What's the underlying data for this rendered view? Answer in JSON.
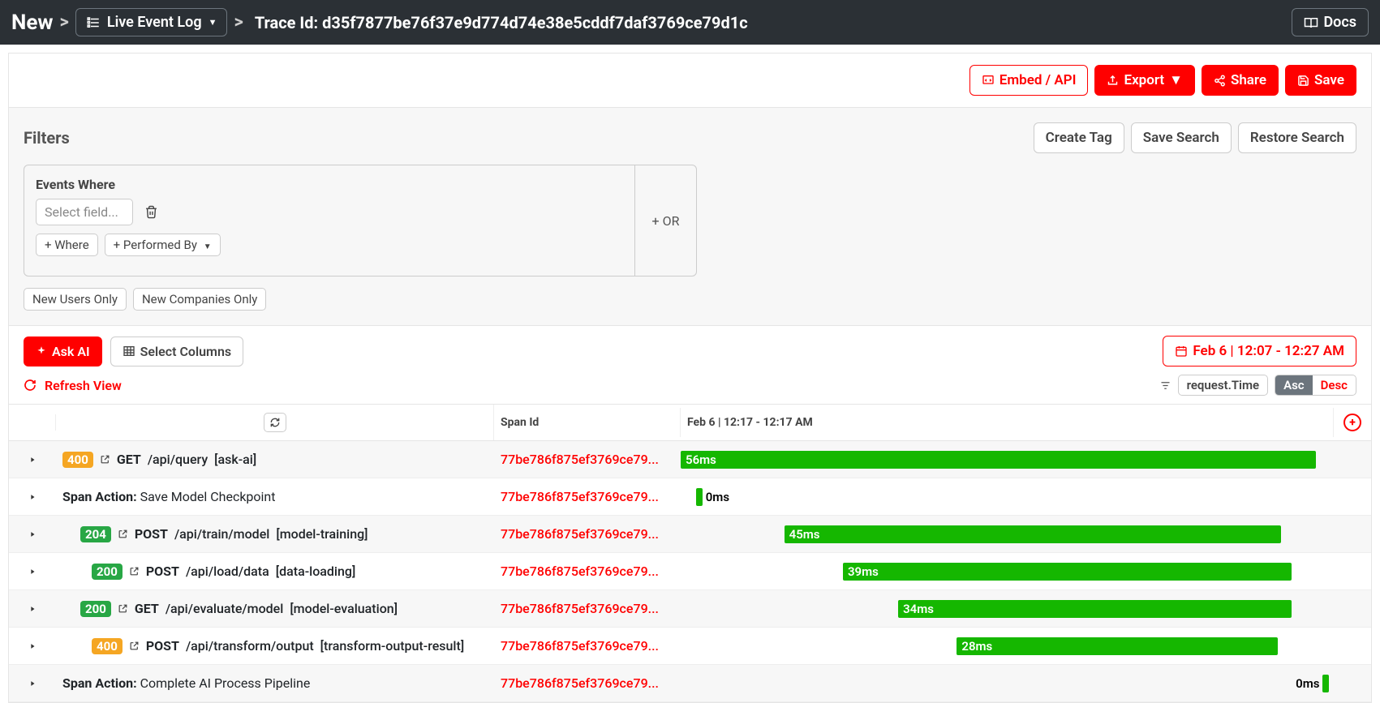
{
  "colors": {
    "topbar_bg": "#2b3035",
    "red": "#ff0000",
    "green": "#15b700",
    "orange": "#f5a623",
    "green_badge": "#28a745",
    "gray_panel": "#f7f7f7"
  },
  "topbar": {
    "new_label": "New",
    "dropdown_label": "Live Event Log",
    "trace_label": "Trace Id: d35f7877be76f37e9d774d74e38e5cddf7daf3769ce79d1c",
    "docs_label": "Docs"
  },
  "actionbar": {
    "embed": "Embed / API",
    "export": "Export",
    "share": "Share",
    "save": "Save"
  },
  "filters": {
    "title": "Filters",
    "create_tag": "Create Tag",
    "save_search": "Save Search",
    "restore_search": "Restore Search",
    "events_where": "Events Where",
    "select_field_placeholder": "Select field...",
    "where": "+ Where",
    "performed_by": "+ Performed By",
    "or": "+ OR",
    "new_users": "New Users Only",
    "new_companies": "New Companies Only"
  },
  "toolbar": {
    "ask_ai": "Ask AI",
    "select_columns": "Select Columns",
    "date_range": "Feb 6 | 12:07 - 12:27 AM",
    "refresh_view": "Refresh View",
    "sort_field": "request.Time",
    "asc": "Asc",
    "desc": "Desc"
  },
  "table": {
    "headers": {
      "span_id": "Span Id",
      "time": "Feb 6 | 12:17 - 12:17 AM"
    },
    "span_id_display": "77be786f875ef3769ce79...",
    "timeline": {
      "total_pct": 100
    },
    "rows": [
      {
        "type": "req",
        "indent": 0,
        "status": 400,
        "status_bg": "#f5a623",
        "method": "GET",
        "path": "/api/query",
        "tag": "[ask-ai]",
        "duration": "56ms",
        "bar_left_pct": 0,
        "bar_width_pct": 92,
        "alt": true
      },
      {
        "type": "action",
        "indent": 0,
        "action_name": "Save Model Checkpoint",
        "duration": "0ms",
        "tick_left_pct": 2.2,
        "text_after": true,
        "alt": false
      },
      {
        "type": "req",
        "indent": 1,
        "status": 204,
        "status_bg": "#28a745",
        "method": "POST",
        "path": "/api/train/model",
        "tag": "[model-training]",
        "duration": "45ms",
        "bar_left_pct": 15,
        "bar_width_pct": 72,
        "alt": true
      },
      {
        "type": "req",
        "indent": 2,
        "status": 200,
        "status_bg": "#28a745",
        "method": "POST",
        "path": "/api/load/data",
        "tag": "[data-loading]",
        "duration": "39ms",
        "bar_left_pct": 23.5,
        "bar_width_pct": 65,
        "alt": false
      },
      {
        "type": "req",
        "indent": 1,
        "status": 200,
        "status_bg": "#28a745",
        "method": "GET",
        "path": "/api/evaluate/model",
        "tag": "[model-evaluation]",
        "duration": "34ms",
        "bar_left_pct": 31.5,
        "bar_width_pct": 57,
        "alt": true
      },
      {
        "type": "req",
        "indent": 2,
        "status": 400,
        "status_bg": "#f5a623",
        "method": "POST",
        "path": "/api/transform/output",
        "tag": "[transform-output-result]",
        "duration": "28ms",
        "bar_left_pct": 40,
        "bar_width_pct": 46.5,
        "alt": false
      },
      {
        "type": "action",
        "indent": 0,
        "action_name": "Complete AI Process Pipeline",
        "duration": "0ms",
        "tick_left_pct": 93,
        "text_before": true,
        "alt": true
      }
    ]
  }
}
